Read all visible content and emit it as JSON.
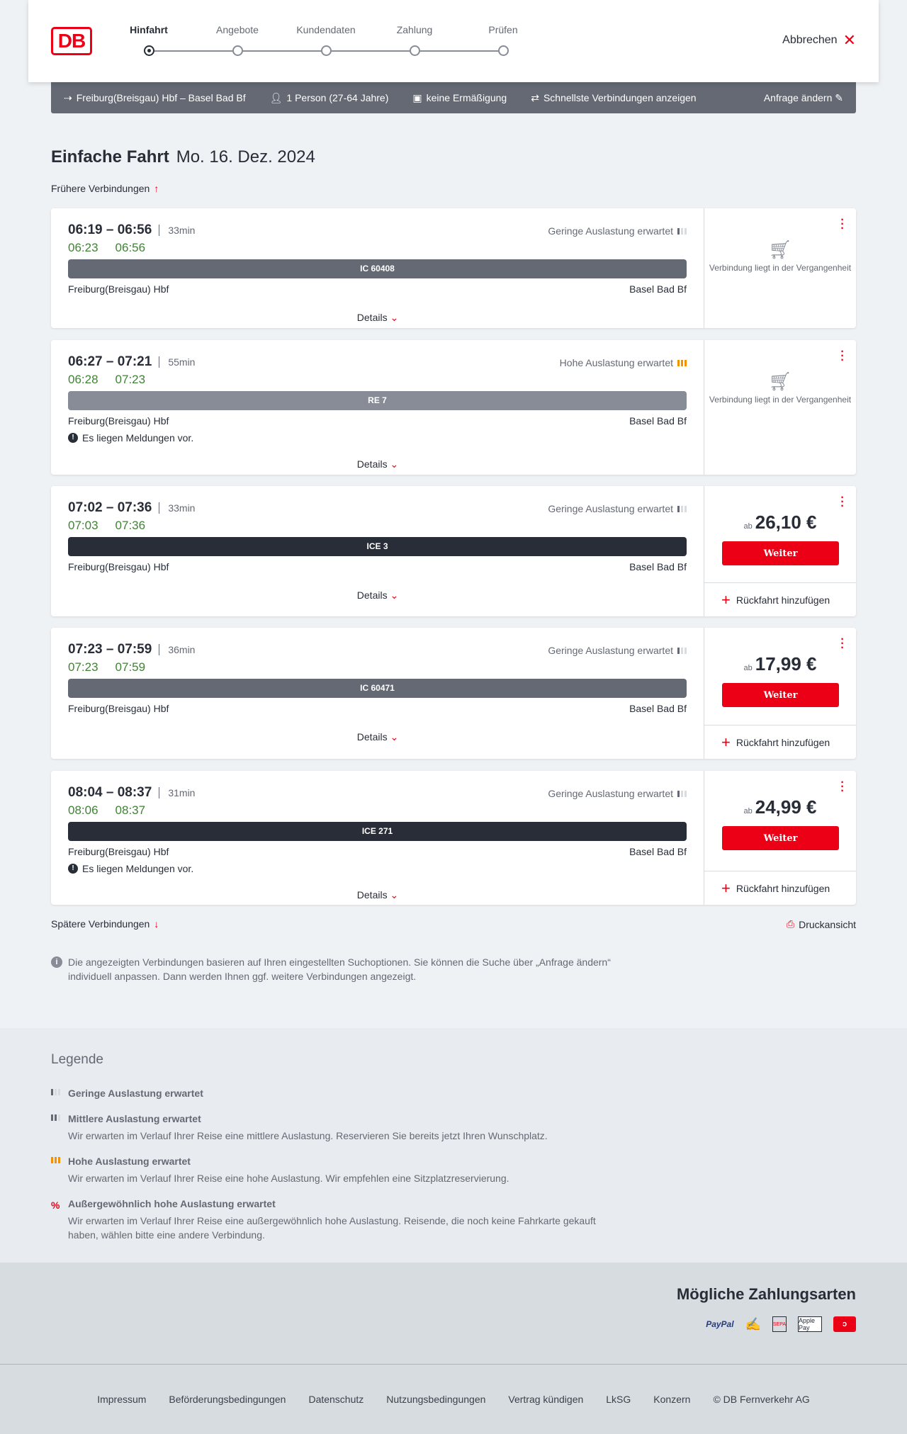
{
  "header": {
    "logo": "DB",
    "steps": [
      "Hinfahrt",
      "Angebote",
      "Kundendaten",
      "Zahlung",
      "Prüfen"
    ],
    "active_step": 0,
    "cancel": "Abbrechen"
  },
  "summary": {
    "route": "Freiburg(Breisgau) Hbf – Basel Bad Bf",
    "passengers": "1 Person (27-64 Jahre)",
    "discount": "keine Ermäßigung",
    "option": "Schnellste Verbindungen anzeigen",
    "edit": "Anfrage ändern"
  },
  "page": {
    "title": "Einfache Fahrt",
    "date": "Mo. 16. Dez. 2024",
    "earlier": "Frühere Verbindungen",
    "later": "Spätere Verbindungen",
    "print": "Druckansicht",
    "info": "Die angezeigten Verbindungen basieren auf Ihren eingestellten Suchoptionen. Sie können die Suche über „Anfrage ändern“ individuell anpassen. Dann werden Ihnen ggf. weitere Verbindungen angezeigt."
  },
  "labels": {
    "details": "Details",
    "past": "Verbindung liegt in der Vergangenheit",
    "ab": "ab",
    "weiter": "Weiter",
    "return": "Rückfahrt hinzufügen",
    "message": "Es liegen Meldungen vor."
  },
  "connections": [
    {
      "times": "06:19 – 06:56",
      "duration": "33min",
      "rt_dep": "06:23",
      "rt_arr": "06:56",
      "load": "Geringe Auslastung erwartet",
      "load_level": 1,
      "train": "IC 60408",
      "train_color": "#646973",
      "from": "Freiburg(Breisgau) Hbf",
      "to": "Basel Bad Bf",
      "message": false,
      "price": null
    },
    {
      "times": "06:27 – 07:21",
      "duration": "55min",
      "rt_dep": "06:28",
      "rt_arr": "07:23",
      "load": "Hohe Auslastung erwartet",
      "load_level": 3,
      "train": "RE 7",
      "train_color": "#878c96",
      "from": "Freiburg(Breisgau) Hbf",
      "to": "Basel Bad Bf",
      "message": true,
      "price": null
    },
    {
      "times": "07:02 – 07:36",
      "duration": "33min",
      "rt_dep": "07:03",
      "rt_arr": "07:36",
      "load": "Geringe Auslastung erwartet",
      "load_level": 1,
      "train": "ICE 3",
      "train_color": "#282d37",
      "from": "Freiburg(Breisgau) Hbf",
      "to": "Basel Bad Bf",
      "message": false,
      "price": "26,10 €"
    },
    {
      "times": "07:23 – 07:59",
      "duration": "36min",
      "rt_dep": "07:23",
      "rt_arr": "07:59",
      "load": "Geringe Auslastung erwartet",
      "load_level": 1,
      "train": "IC 60471",
      "train_color": "#646973",
      "from": "Freiburg(Breisgau) Hbf",
      "to": "Basel Bad Bf",
      "message": false,
      "price": "17,99 €"
    },
    {
      "times": "08:04 – 08:37",
      "duration": "31min",
      "rt_dep": "08:06",
      "rt_arr": "08:37",
      "load": "Geringe Auslastung erwartet",
      "load_level": 1,
      "train": "ICE 271",
      "train_color": "#282d37",
      "from": "Freiburg(Breisgau) Hbf",
      "to": "Basel Bad Bf",
      "message": true,
      "price": "24,99 €"
    }
  ],
  "legend": {
    "title": "Legende",
    "items": [
      {
        "title": "Geringe Auslastung erwartet",
        "text": "",
        "level": 1
      },
      {
        "title": "Mittlere Auslastung erwartet",
        "text": "Wir erwarten im Verlauf Ihrer Reise eine mittlere Auslastung. Reservieren Sie bereits jetzt Ihren Wunschplatz.",
        "level": 2
      },
      {
        "title": "Hohe Auslastung erwartet",
        "text": "Wir erwarten im Verlauf Ihrer Reise eine hohe Auslastung. Wir empfehlen eine Sitzplatzreservierung.",
        "level": 3
      },
      {
        "title": "Außergewöhnlich hohe Auslastung erwartet",
        "text": "Wir erwarten im Verlauf Ihrer Reise eine außergewöhnlich hohe Auslastung. Reisende, die noch keine Fahrkarte gekauft haben, wählen bitte eine andere Verbindung.",
        "level": 4
      }
    ]
  },
  "payment": {
    "title": "Mögliche Zahlungsarten",
    "methods": [
      "PayPal",
      "Kreditkarte",
      "SEPA",
      "Apple Pay",
      "DB Bonus"
    ]
  },
  "footer": {
    "links": [
      "Impressum",
      "Beförderungsbedingungen",
      "Datenschutz",
      "Nutzungsbedingungen",
      "Vertrag kündigen",
      "LkSG",
      "Konzern",
      "© DB Fernverkehr AG"
    ]
  },
  "colors": {
    "accent": "#ec0016",
    "realtime": "#408335",
    "high_load": "#f39200"
  }
}
